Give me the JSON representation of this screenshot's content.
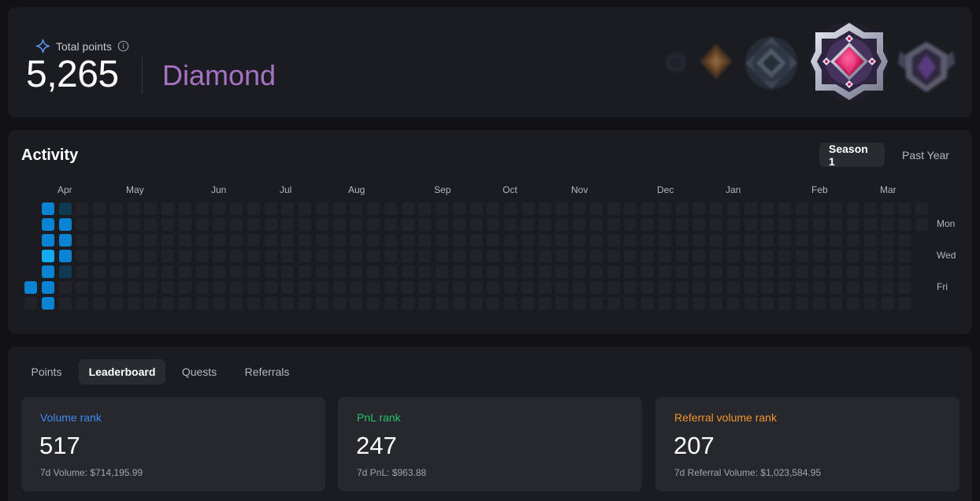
{
  "total_points": {
    "label": "Total points",
    "value": "5,265",
    "tier": "Diamond",
    "icons": [
      "sparkle-icon",
      "info-icon"
    ]
  },
  "badges": {
    "tiers": [
      "bronze",
      "silver",
      "gold",
      "platinum",
      "diamond",
      "master"
    ],
    "current": "diamond"
  },
  "activity": {
    "title": "Activity",
    "filters": [
      "Season 1",
      "Past Year"
    ],
    "selected_filter": "Season 1",
    "months": [
      "Apr",
      "May",
      "Jun",
      "Jul",
      "Aug",
      "Sep",
      "Oct",
      "Nov",
      "Dec",
      "Jan",
      "Feb",
      "Mar"
    ],
    "day_labels": [
      "Mon",
      "Wed",
      "Fri"
    ],
    "weeks": 53,
    "active_days": [
      {
        "week": 0,
        "day": 5,
        "level": 3
      },
      {
        "week": 1,
        "day": 0,
        "level": 3
      },
      {
        "week": 1,
        "day": 1,
        "level": 3
      },
      {
        "week": 1,
        "day": 2,
        "level": 3
      },
      {
        "week": 1,
        "day": 3,
        "level": 4
      },
      {
        "week": 1,
        "day": 4,
        "level": 3
      },
      {
        "week": 1,
        "day": 5,
        "level": 3
      },
      {
        "week": 1,
        "day": 6,
        "level": 3
      },
      {
        "week": 2,
        "day": 0,
        "level": 1
      },
      {
        "week": 2,
        "day": 1,
        "level": 3
      },
      {
        "week": 2,
        "day": 2,
        "level": 3
      },
      {
        "week": 2,
        "day": 3,
        "level": 3
      },
      {
        "week": 2,
        "day": 4,
        "level": 1
      }
    ],
    "level_colors": {
      "0": "#222329",
      "1": "#0f3a52",
      "2": "#0a5f95",
      "3": "#0a84d2",
      "4": "#14aaf0"
    }
  },
  "tabs": {
    "items": [
      "Points",
      "Leaderboard",
      "Quests",
      "Referrals"
    ],
    "selected": "Leaderboard"
  },
  "ranks": [
    {
      "title": "Volume rank",
      "value": "517",
      "sub": "7d Volume: $714,195.99",
      "color": "#3d8bf0"
    },
    {
      "title": "PnL rank",
      "value": "247",
      "sub": "7d PnL: $963.88",
      "color": "#26c06a"
    },
    {
      "title": "Referral volume rank",
      "value": "207",
      "sub": "7d Referral Volume: $1,023,584.95",
      "color": "#f0962a"
    }
  ]
}
